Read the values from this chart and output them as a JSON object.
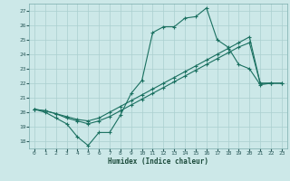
{
  "title": "",
  "xlabel": "Humidex (Indice chaleur)",
  "xlim": [
    -0.5,
    23.5
  ],
  "ylim": [
    17.5,
    27.5
  ],
  "yticks": [
    18,
    19,
    20,
    21,
    22,
    23,
    24,
    25,
    26,
    27
  ],
  "xticks": [
    0,
    1,
    2,
    3,
    4,
    5,
    6,
    7,
    8,
    9,
    10,
    11,
    12,
    13,
    14,
    15,
    16,
    17,
    18,
    19,
    20,
    21,
    22,
    23
  ],
  "bg_color": "#cce8e8",
  "grid_color": "#aacfcf",
  "line_color": "#1a7060",
  "line1_x": [
    0,
    1,
    2,
    3,
    4,
    5,
    6,
    7,
    8,
    9,
    10,
    11,
    12,
    13,
    14,
    15,
    16,
    17,
    18,
    19,
    20,
    21,
    22
  ],
  "line1_y": [
    20.2,
    20.0,
    19.6,
    19.2,
    18.3,
    17.7,
    18.6,
    18.6,
    19.8,
    21.3,
    22.2,
    25.5,
    25.9,
    25.9,
    26.5,
    26.6,
    27.2,
    25.0,
    24.5,
    23.3,
    23.0,
    21.9,
    22.0
  ],
  "line2_x": [
    0,
    1,
    2,
    3,
    4,
    5,
    6,
    7,
    8,
    9,
    10,
    11,
    12,
    13,
    14,
    15,
    16,
    17,
    18,
    19,
    20,
    21,
    22,
    23
  ],
  "line2_y": [
    20.2,
    20.1,
    19.9,
    19.7,
    19.5,
    19.4,
    19.6,
    20.0,
    20.4,
    20.8,
    21.2,
    21.6,
    22.0,
    22.4,
    22.8,
    23.2,
    23.6,
    24.0,
    24.4,
    24.8,
    25.2,
    22.0,
    22.0,
    22.0
  ],
  "line3_x": [
    0,
    1,
    2,
    3,
    4,
    5,
    6,
    7,
    8,
    9,
    10,
    11,
    12,
    13,
    14,
    15,
    16,
    17,
    18,
    19,
    20,
    21,
    22,
    23
  ],
  "line3_y": [
    20.2,
    20.1,
    19.9,
    19.6,
    19.4,
    19.2,
    19.4,
    19.7,
    20.1,
    20.5,
    20.9,
    21.3,
    21.7,
    22.1,
    22.5,
    22.9,
    23.3,
    23.7,
    24.1,
    24.5,
    24.8,
    22.0,
    22.0,
    22.0
  ]
}
